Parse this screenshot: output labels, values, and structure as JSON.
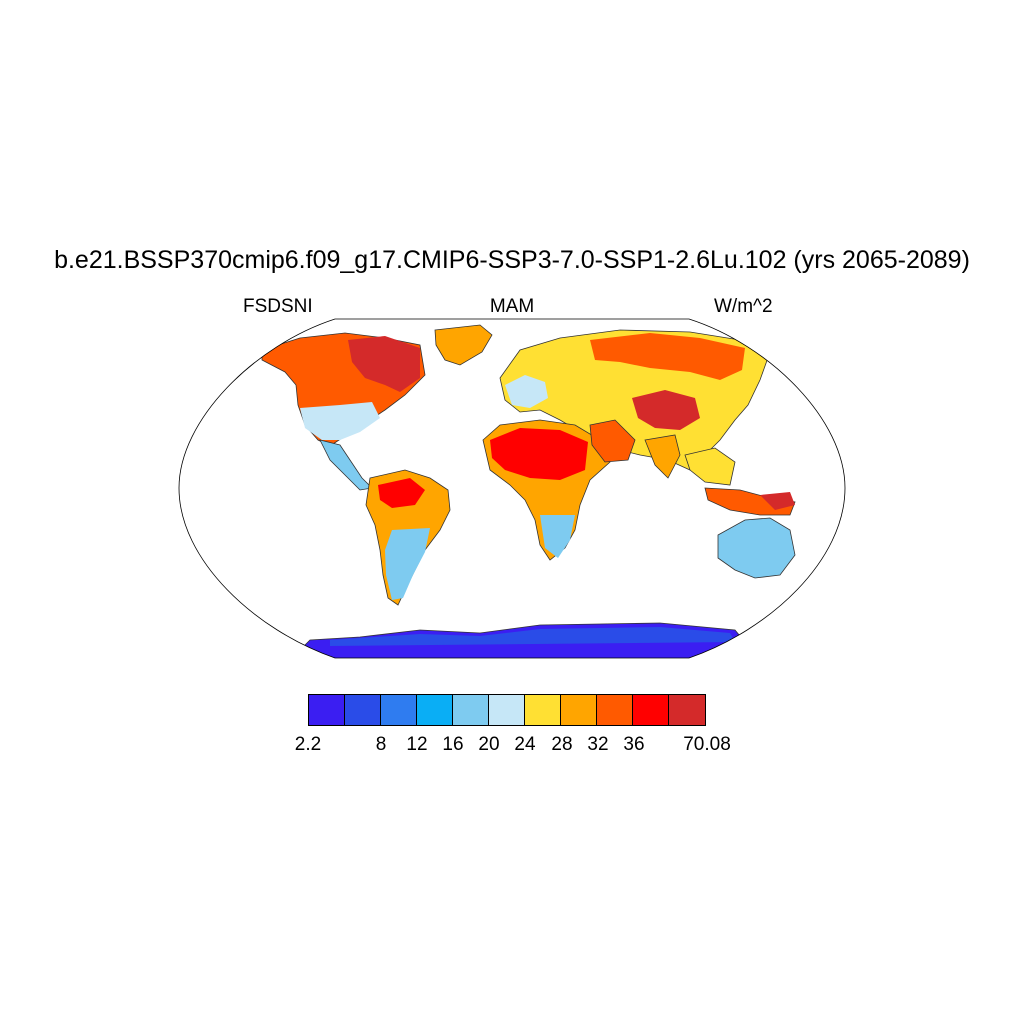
{
  "title": "b.e21.BSSP370cmip6.f09_g17.CMIP6-SSP3-7.0-SSP1-2.6Lu.102 (yrs 2065-2089)",
  "left_label": "FSDSNI",
  "center_label": "MAM",
  "right_label": "W/m^2",
  "colorbar": {
    "colors": [
      "#3b1ef2",
      "#2a4ce8",
      "#2f7cf0",
      "#0aaef5",
      "#7ecbf0",
      "#c6e7f7",
      "#ffe033",
      "#ffa500",
      "#ff5a00",
      "#ff0000",
      "#d42a2a"
    ],
    "labels": [
      "2.2",
      "8",
      "12",
      "16",
      "20",
      "24",
      "28",
      "32",
      "36",
      "70.08"
    ]
  },
  "map": {
    "projection": "Robinson",
    "ocean_color": "#ffffff",
    "colors": {
      "v_high": "#d42a2a",
      "high": "#ff0000",
      "orange_red": "#ff5a00",
      "orange": "#ffa500",
      "yellow": "#ffe033",
      "pale_blue": "#c6e7f7",
      "light_blue": "#7ecbf0",
      "sky": "#0aaef5",
      "blue": "#2f7cf0",
      "deep_blue": "#2a4ce8",
      "violet": "#3b1ef2"
    }
  }
}
